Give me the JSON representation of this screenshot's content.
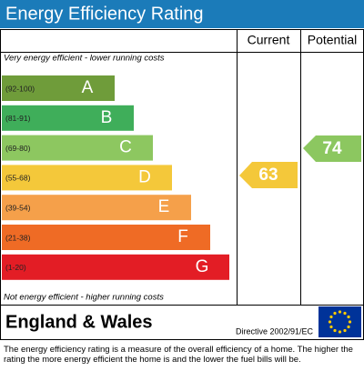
{
  "header": {
    "title": "Energy Efficiency Rating"
  },
  "columns": {
    "current": "Current",
    "potential": "Potential"
  },
  "top_note": "Very energy efficient - lower running costs",
  "bottom_note": "Not energy efficient - higher running costs",
  "bands": [
    {
      "range": "(92-100)",
      "letter": "A"
    },
    {
      "range": "(81-91)",
      "letter": "B"
    },
    {
      "range": "(69-80)",
      "letter": "C"
    },
    {
      "range": "(55-68)",
      "letter": "D"
    },
    {
      "range": "(39-54)",
      "letter": "E"
    },
    {
      "range": "(21-38)",
      "letter": "F"
    },
    {
      "range": "(1-20)",
      "letter": "G"
    }
  ],
  "current": 63,
  "potential": 74,
  "footer": {
    "region": "England & Wales",
    "directive": "Directive 2002/91/EC"
  },
  "description": "The energy efficiency rating is a measure of the overall efficiency of a home. The higher the rating the more energy efficient the home is and the lower the fuel bills will be."
}
